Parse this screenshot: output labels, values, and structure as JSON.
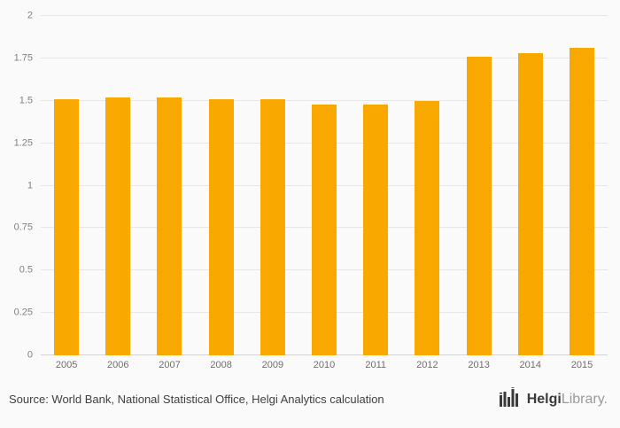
{
  "chart_data": {
    "type": "bar",
    "categories": [
      "2005",
      "2006",
      "2007",
      "2008",
      "2009",
      "2010",
      "2011",
      "2012",
      "2013",
      "2014",
      "2015"
    ],
    "values": [
      1.51,
      1.52,
      1.52,
      1.51,
      1.51,
      1.48,
      1.48,
      1.5,
      1.76,
      1.78,
      1.81
    ],
    "title": "",
    "xlabel": "",
    "ylabel": "",
    "ylim": [
      0,
      2
    ],
    "yticks": [
      0,
      0.25,
      0.5,
      0.75,
      1,
      1.25,
      1.5,
      1.75,
      2
    ],
    "ytick_labels": [
      "0",
      "0.25",
      "0.5",
      "0.75",
      "1",
      "1.25",
      "1.5",
      "1.75",
      "2"
    ],
    "bar_color": "#f9a800",
    "grid": true,
    "legend": false
  },
  "footer": {
    "source_text": "Source: World Bank, National Statistical Office, Helgi Analytics calculation",
    "logo": {
      "primary": "Helgi",
      "secondary": "Library."
    }
  },
  "colors": {
    "background": "#fafafa",
    "gridline": "#e6e6e6",
    "bar": "#f9a800",
    "axis_text": "#808080"
  }
}
